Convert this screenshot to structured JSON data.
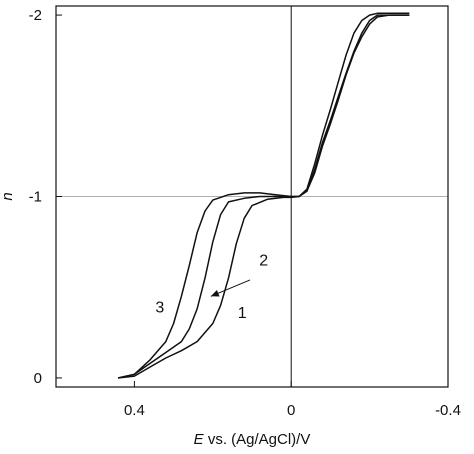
{
  "chart_data": {
    "type": "line",
    "title": "",
    "xlabel_italic": "E",
    "xlabel_rest": " vs. (Ag/AgCl)/V",
    "ylabel": "n",
    "xlim": [
      0.6,
      -0.4
    ],
    "ylim": [
      0.05,
      -2.05
    ],
    "x_inverted": true,
    "y_inverted": true,
    "grid": false,
    "reference_lines": {
      "x": 0,
      "y": -1
    },
    "x_ticks": [
      {
        "value": 0.4,
        "label": "0.4"
      },
      {
        "value": 0,
        "label": "0"
      },
      {
        "value": -0.4,
        "label": "-0.4"
      }
    ],
    "y_ticks": [
      {
        "value": 0,
        "label": "0"
      },
      {
        "value": -1,
        "label": "-1"
      },
      {
        "value": -2,
        "label": "-2"
      }
    ],
    "series": [
      {
        "name": "1",
        "points": [
          [
            0.44,
            0.0
          ],
          [
            0.4,
            -0.01
          ],
          [
            0.36,
            -0.06
          ],
          [
            0.32,
            -0.11
          ],
          [
            0.28,
            -0.15
          ],
          [
            0.24,
            -0.2
          ],
          [
            0.2,
            -0.3
          ],
          [
            0.18,
            -0.4
          ],
          [
            0.16,
            -0.55
          ],
          [
            0.14,
            -0.74
          ],
          [
            0.12,
            -0.88
          ],
          [
            0.1,
            -0.95
          ],
          [
            0.06,
            -0.985
          ],
          [
            0.02,
            -0.995
          ],
          [
            0.0,
            -0.995
          ],
          [
            -0.02,
            -1.0
          ],
          [
            -0.04,
            -1.03
          ],
          [
            -0.06,
            -1.15
          ],
          [
            -0.08,
            -1.3
          ],
          [
            -0.1,
            -1.42
          ],
          [
            -0.12,
            -1.55
          ],
          [
            -0.14,
            -1.68
          ],
          [
            -0.16,
            -1.8
          ],
          [
            -0.18,
            -1.9
          ],
          [
            -0.2,
            -1.97
          ],
          [
            -0.22,
            -2.0
          ],
          [
            -0.25,
            -2.0
          ],
          [
            -0.3,
            -2.0
          ]
        ]
      },
      {
        "name": "2",
        "points": [
          [
            0.44,
            0.0
          ],
          [
            0.4,
            -0.02
          ],
          [
            0.36,
            -0.08
          ],
          [
            0.32,
            -0.14
          ],
          [
            0.28,
            -0.2
          ],
          [
            0.26,
            -0.27
          ],
          [
            0.24,
            -0.38
          ],
          [
            0.22,
            -0.55
          ],
          [
            0.2,
            -0.75
          ],
          [
            0.18,
            -0.9
          ],
          [
            0.16,
            -0.97
          ],
          [
            0.12,
            -0.99
          ],
          [
            0.08,
            -1.0
          ],
          [
            0.04,
            -1.0
          ],
          [
            0.0,
            -1.0
          ],
          [
            -0.02,
            -1.0
          ],
          [
            -0.04,
            -1.03
          ],
          [
            -0.06,
            -1.13
          ],
          [
            -0.08,
            -1.28
          ],
          [
            -0.1,
            -1.4
          ],
          [
            -0.12,
            -1.53
          ],
          [
            -0.14,
            -1.67
          ],
          [
            -0.16,
            -1.79
          ],
          [
            -0.18,
            -1.88
          ],
          [
            -0.2,
            -1.95
          ],
          [
            -0.22,
            -1.99
          ],
          [
            -0.25,
            -2.0
          ],
          [
            -0.3,
            -2.0
          ]
        ]
      },
      {
        "name": "3",
        "points": [
          [
            0.44,
            0.0
          ],
          [
            0.4,
            -0.02
          ],
          [
            0.36,
            -0.1
          ],
          [
            0.32,
            -0.2
          ],
          [
            0.3,
            -0.3
          ],
          [
            0.28,
            -0.45
          ],
          [
            0.26,
            -0.62
          ],
          [
            0.24,
            -0.8
          ],
          [
            0.22,
            -0.92
          ],
          [
            0.2,
            -0.98
          ],
          [
            0.16,
            -1.01
          ],
          [
            0.12,
            -1.02
          ],
          [
            0.08,
            -1.02
          ],
          [
            0.04,
            -1.01
          ],
          [
            0.0,
            -1.0
          ],
          [
            -0.02,
            -1.0
          ],
          [
            -0.04,
            -1.04
          ],
          [
            -0.06,
            -1.18
          ],
          [
            -0.08,
            -1.34
          ],
          [
            -0.1,
            -1.48
          ],
          [
            -0.12,
            -1.63
          ],
          [
            -0.14,
            -1.78
          ],
          [
            -0.16,
            -1.9
          ],
          [
            -0.18,
            -1.97
          ],
          [
            -0.2,
            -2.0
          ],
          [
            -0.22,
            -2.01
          ],
          [
            -0.25,
            -2.01
          ],
          [
            -0.3,
            -2.01
          ]
        ]
      }
    ],
    "annotations": [
      {
        "text": "1",
        "x": 0.125,
        "y": -0.33
      },
      {
        "text": "2",
        "x": 0.07,
        "y": -0.62
      },
      {
        "text": "3",
        "x": 0.335,
        "y": -0.36
      }
    ],
    "arrow": {
      "from": [
        0.105,
        -0.54
      ],
      "to": [
        0.205,
        -0.45
      ]
    }
  }
}
